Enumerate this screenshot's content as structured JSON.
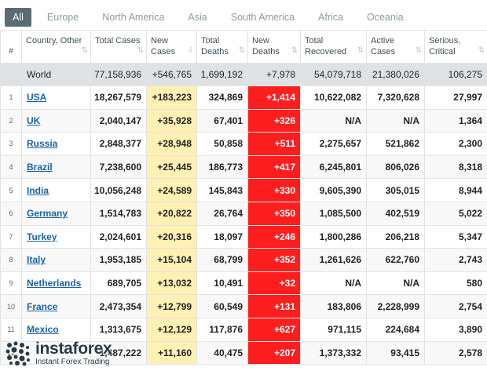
{
  "tabs": [
    "All",
    "Europe",
    "North America",
    "Asia",
    "South America",
    "Africa",
    "Oceania"
  ],
  "columns": [
    {
      "label": "#",
      "sort": ""
    },
    {
      "label": "Country, Other",
      "sort": "⇅"
    },
    {
      "label": "Total Cases",
      "sort": "⇅"
    },
    {
      "label": "New Cases",
      "sort": "⇩"
    },
    {
      "label": "Total Deaths",
      "sort": "⇅"
    },
    {
      "label": "New Deaths",
      "sort": "⇅"
    },
    {
      "label": "Total Recovered",
      "sort": "⇅"
    },
    {
      "label": "Active Cases",
      "sort": "⇅"
    },
    {
      "label": "Serious, Critical",
      "sort": "⇅"
    }
  ],
  "world": {
    "country": "World",
    "total_cases": "77,158,936",
    "new_cases": "+546,765",
    "total_deaths": "1,699,192",
    "new_deaths": "+7,978",
    "total_recovered": "54,079,718",
    "active_cases": "21,380,026",
    "serious": "106,275"
  },
  "rows": [
    {
      "num": "1",
      "country": "USA",
      "total_cases": "18,267,579",
      "new_cases": "+183,223",
      "total_deaths": "324,869",
      "new_deaths": "+1,414",
      "total_recovered": "10,622,082",
      "active_cases": "7,320,628",
      "serious": "27,997"
    },
    {
      "num": "2",
      "country": "UK",
      "total_cases": "2,040,147",
      "new_cases": "+35,928",
      "total_deaths": "67,401",
      "new_deaths": "+326",
      "total_recovered": "N/A",
      "active_cases": "N/A",
      "serious": "1,364"
    },
    {
      "num": "3",
      "country": "Russia",
      "total_cases": "2,848,377",
      "new_cases": "+28,948",
      "total_deaths": "50,858",
      "new_deaths": "+511",
      "total_recovered": "2,275,657",
      "active_cases": "521,862",
      "serious": "2,300"
    },
    {
      "num": "4",
      "country": "Brazil",
      "total_cases": "7,238,600",
      "new_cases": "+25,445",
      "total_deaths": "186,773",
      "new_deaths": "+417",
      "total_recovered": "6,245,801",
      "active_cases": "806,026",
      "serious": "8,318"
    },
    {
      "num": "5",
      "country": "India",
      "total_cases": "10,056,248",
      "new_cases": "+24,589",
      "total_deaths": "145,843",
      "new_deaths": "+330",
      "total_recovered": "9,605,390",
      "active_cases": "305,015",
      "serious": "8,944"
    },
    {
      "num": "6",
      "country": "Germany",
      "total_cases": "1,514,783",
      "new_cases": "+20,822",
      "total_deaths": "26,764",
      "new_deaths": "+350",
      "total_recovered": "1,085,500",
      "active_cases": "402,519",
      "serious": "5,022"
    },
    {
      "num": "7",
      "country": "Turkey",
      "total_cases": "2,024,601",
      "new_cases": "+20,316",
      "total_deaths": "18,097",
      "new_deaths": "+246",
      "total_recovered": "1,800,286",
      "active_cases": "206,218",
      "serious": "5,347"
    },
    {
      "num": "8",
      "country": "Italy",
      "total_cases": "1,953,185",
      "new_cases": "+15,104",
      "total_deaths": "68,799",
      "new_deaths": "+352",
      "total_recovered": "1,261,626",
      "active_cases": "622,760",
      "serious": "2,743"
    },
    {
      "num": "9",
      "country": "Netherlands",
      "total_cases": "689,705",
      "new_cases": "+13,032",
      "total_deaths": "10,491",
      "new_deaths": "+32",
      "total_recovered": "N/A",
      "active_cases": "N/A",
      "serious": "580"
    },
    {
      "num": "10",
      "country": "France",
      "total_cases": "2,473,354",
      "new_cases": "+12,799",
      "total_deaths": "60,549",
      "new_deaths": "+131",
      "total_recovered": "183,806",
      "active_cases": "2,228,999",
      "serious": "2,754"
    },
    {
      "num": "11",
      "country": "Mexico",
      "total_cases": "1,313,675",
      "new_cases": "+12,129",
      "total_deaths": "117,876",
      "new_deaths": "+627",
      "total_recovered": "971,115",
      "active_cases": "224,684",
      "serious": "3,890"
    },
    {
      "num": "12",
      "country": "",
      "total_cases": "1,487,222",
      "new_cases": "+11,160",
      "total_deaths": "40,475",
      "new_deaths": "+207",
      "total_recovered": "1,373,332",
      "active_cases": "93,415",
      "serious": "2,578"
    }
  ],
  "watermark": {
    "name": "instaforex",
    "tagline": "Instant Forex Trading"
  }
}
